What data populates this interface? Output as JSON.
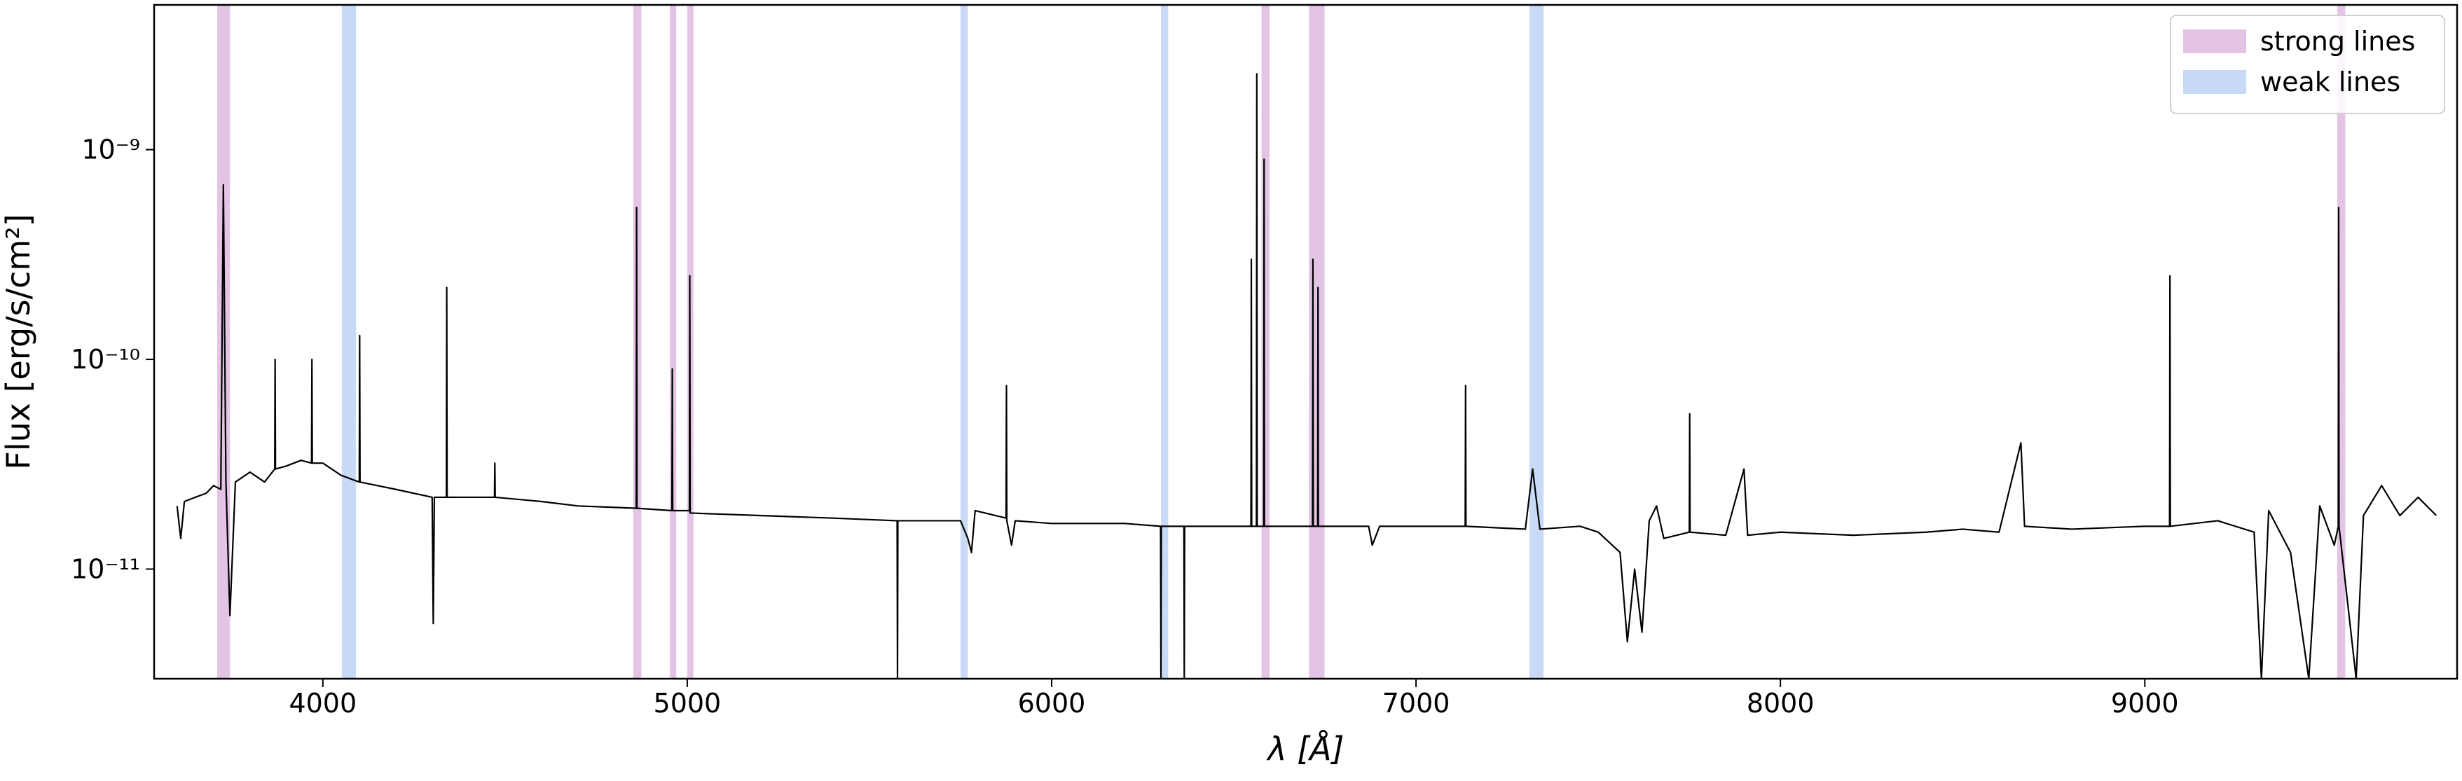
{
  "chart_data": {
    "type": "line",
    "xlabel": "λ [Å]",
    "ylabel": "Flux [erg/s/cm²]",
    "xlim": [
      3537,
      9857
    ],
    "ylim": [
      3e-12,
      4.9e-09
    ],
    "yscale": "log",
    "xticks": [
      4000,
      5000,
      6000,
      7000,
      8000,
      9000
    ],
    "yticks": [
      {
        "value": 1e-11,
        "label": "10⁻¹¹"
      },
      {
        "value": 1e-10,
        "label": "10⁻¹⁰"
      },
      {
        "value": 1e-09,
        "label": "10⁻⁹"
      }
    ],
    "legend": "upper right",
    "bands": [
      {
        "name": "strong lines",
        "color": "#e4c4e4",
        "ranges": [
          [
            3710,
            3745
          ],
          [
            4852,
            4874
          ],
          [
            4952,
            4970
          ],
          [
            5000,
            5017
          ],
          [
            6576,
            6598
          ],
          [
            6706,
            6749
          ],
          [
            9528,
            9550
          ]
        ]
      },
      {
        "name": "weak lines",
        "color": "#c8daf6",
        "ranges": [
          [
            4052,
            4091
          ],
          [
            5750,
            5770
          ],
          [
            6300,
            6320
          ],
          [
            7311,
            7350
          ]
        ]
      }
    ],
    "series": [
      {
        "color": "#000000",
        "x": [
          3600,
          3610,
          3620,
          3650,
          3680,
          3700,
          3720,
          3727,
          3734,
          3745,
          3760,
          3800,
          3840,
          3868,
          3869,
          3870,
          3900,
          3940,
          3969,
          3970,
          3971,
          4000,
          4050,
          4100,
          4101,
          4102,
          4150,
          4200,
          4300,
          4303,
          4306,
          4339,
          4340,
          4341,
          4471,
          4472,
          4473,
          4600,
          4700,
          4860,
          4861,
          4862,
          4958,
          4959,
          4960,
          5006,
          5007,
          5008,
          5200,
          5400,
          5576,
          5577,
          5578,
          5750,
          5770,
          5780,
          5790,
          5875,
          5876,
          5877,
          5890,
          5900,
          6000,
          6200,
          6299,
          6300,
          6301,
          6363,
          6364,
          6365,
          6500,
          6547,
          6548,
          6549,
          6562,
          6563,
          6564,
          6582,
          6583,
          6584,
          6716,
          6717,
          6718,
          6730,
          6731,
          6732,
          6870,
          6880,
          6900,
          7135,
          7136,
          7137,
          7300,
          7320,
          7340,
          7450,
          7500,
          7560,
          7580,
          7600,
          7620,
          7640,
          7660,
          7680,
          7750,
          7751,
          7752,
          7850,
          7900,
          7910,
          8000,
          8200,
          8400,
          8500,
          8600,
          8660,
          8670,
          8800,
          9000,
          9068,
          9069,
          9070,
          9200,
          9300,
          9320,
          9340,
          9400,
          9450,
          9480,
          9520,
          9531,
          9532,
          9533,
          9580,
          9600,
          9650,
          9700,
          9750,
          9800
        ],
        "values": [
          2e-11,
          1.4e-11,
          2.1e-11,
          2.2e-11,
          2.3e-11,
          2.5e-11,
          2.4e-11,
          6.8e-10,
          2.6e-11,
          6e-12,
          2.6e-11,
          2.9e-11,
          2.6e-11,
          3e-11,
          1e-10,
          3e-11,
          3.1e-11,
          3.3e-11,
          3.2e-11,
          1e-10,
          3.2e-11,
          3.2e-11,
          2.8e-11,
          2.6e-11,
          1.3e-10,
          2.6e-11,
          2.5e-11,
          2.4e-11,
          2.2e-11,
          5.5e-12,
          2.2e-11,
          2.2e-11,
          2.2e-10,
          2.2e-11,
          2.2e-11,
          3.2e-11,
          2.2e-11,
          2.1e-11,
          2e-11,
          1.95e-11,
          5.3e-10,
          1.95e-11,
          1.9e-11,
          9e-11,
          1.9e-11,
          1.9e-11,
          2.5e-10,
          1.85e-11,
          1.8e-11,
          1.75e-11,
          1.7e-11,
          3e-12,
          1.7e-11,
          1.7e-11,
          1.4e-11,
          1.2e-11,
          1.9e-11,
          1.75e-11,
          7.5e-11,
          1.7e-11,
          1.3e-11,
          1.7e-11,
          1.65e-11,
          1.65e-11,
          1.6e-11,
          3e-12,
          1.6e-11,
          1.6e-11,
          3e-12,
          1.6e-11,
          1.6e-11,
          1.6e-11,
          3e-10,
          1.6e-11,
          1.6e-11,
          2.3e-09,
          1.6e-11,
          1.6e-11,
          9e-10,
          1.6e-11,
          1.6e-11,
          3e-10,
          1.6e-11,
          1.6e-11,
          2.2e-10,
          1.6e-11,
          1.6e-11,
          1.3e-11,
          1.6e-11,
          1.6e-11,
          7.5e-11,
          1.6e-11,
          1.55e-11,
          3e-11,
          1.55e-11,
          1.6e-11,
          1.5e-11,
          1.2e-11,
          4.5e-12,
          1e-11,
          5e-12,
          1.7e-11,
          2e-11,
          1.4e-11,
          1.5e-11,
          5.5e-11,
          1.5e-11,
          1.45e-11,
          3e-11,
          1.45e-11,
          1.5e-11,
          1.45e-11,
          1.5e-11,
          1.55e-11,
          1.5e-11,
          4e-11,
          1.6e-11,
          1.55e-11,
          1.6e-11,
          1.6e-11,
          2.5e-10,
          1.6e-11,
          1.7e-11,
          1.5e-11,
          3e-12,
          1.9e-11,
          1.2e-11,
          3e-12,
          2e-11,
          1.3e-11,
          1.6e-11,
          5.3e-10,
          1.6e-11,
          3e-12,
          1.8e-11,
          2.5e-11,
          1.8e-11,
          2.2e-11,
          1.8e-11
        ]
      }
    ]
  }
}
